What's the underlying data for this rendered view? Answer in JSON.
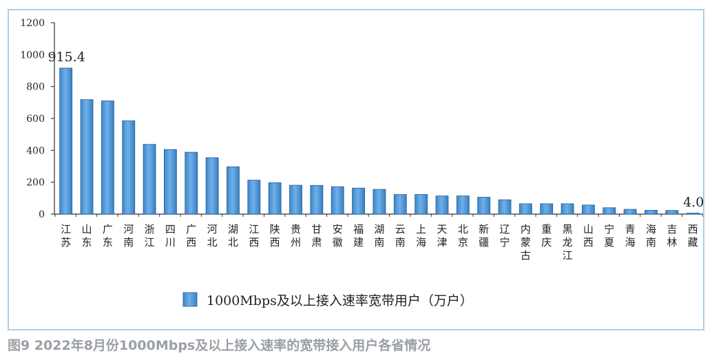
{
  "chart_data": {
    "type": "bar",
    "title": "",
    "xlabel": "",
    "ylabel": "",
    "ylim": [
      0,
      1200
    ],
    "yticks": [
      0,
      200,
      400,
      600,
      800,
      1000,
      1200
    ],
    "categories": [
      "江苏",
      "山东",
      "广东",
      "河南",
      "浙江",
      "四川",
      "广西",
      "河北",
      "湖北",
      "江西",
      "陕西",
      "贵州",
      "甘肃",
      "安徽",
      "福建",
      "湖南",
      "云南",
      "上海",
      "天津",
      "北京",
      "新疆",
      "辽宁",
      "内蒙古",
      "重庆",
      "黑龙江",
      "山西",
      "宁夏",
      "青海",
      "海南",
      "吉林",
      "西藏"
    ],
    "series": [
      {
        "name": "1000Mbps及以上接入速率宽带用户（万户）",
        "values": [
          915.4,
          718,
          710,
          585,
          437,
          405,
          388,
          354,
          297,
          213,
          197,
          181,
          180,
          172,
          163,
          155,
          123,
          123,
          114,
          114,
          106,
          90,
          65,
          65,
          65,
          57,
          40,
          30,
          24,
          23,
          4.0
        ]
      }
    ],
    "data_labels": [
      {
        "category": "江苏",
        "text": "915.4"
      },
      {
        "category": "西藏",
        "text": "4.0"
      }
    ],
    "legend_position": "bottom-center",
    "grid": false,
    "bar_color": "#5b9bd5"
  },
  "caption": "图9 2022年8月份1000Mbps及以上接入速率的宽带接入用户各省情况"
}
